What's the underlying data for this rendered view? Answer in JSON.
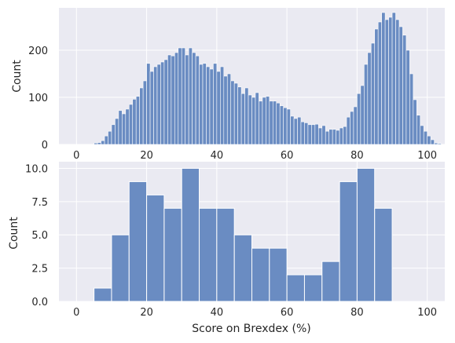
{
  "colors": {
    "plot_background": "#eaeaf2",
    "grid": "#ffffff",
    "bar_fill": "#6a8cc2",
    "bar_edge": "#ffffff"
  },
  "chart_data": [
    {
      "type": "bar",
      "subtype": "histogram",
      "title": "",
      "xlabel": "",
      "ylabel": "Count",
      "xlim": [
        -5,
        105
      ],
      "ylim": [
        0,
        290
      ],
      "xticks": [
        0,
        20,
        40,
        60,
        80,
        100
      ],
      "yticks": [
        0,
        100,
        200
      ],
      "ytick_labels": [
        "0",
        "100",
        "200"
      ],
      "grid": true,
      "bin_start": 0,
      "bin_width": 1,
      "values": [
        0,
        0,
        0,
        0,
        0,
        3,
        4,
        8,
        18,
        28,
        42,
        55,
        72,
        65,
        75,
        85,
        96,
        102,
        120,
        135,
        172,
        155,
        165,
        170,
        175,
        180,
        190,
        188,
        195,
        205,
        205,
        190,
        205,
        195,
        188,
        170,
        172,
        165,
        160,
        172,
        155,
        165,
        145,
        150,
        135,
        130,
        122,
        108,
        120,
        105,
        100,
        110,
        92,
        100,
        102,
        92,
        92,
        88,
        82,
        78,
        75,
        60,
        55,
        58,
        48,
        46,
        42,
        42,
        43,
        35,
        40,
        28,
        32,
        32,
        30,
        35,
        38,
        58,
        70,
        80,
        108,
        125,
        170,
        195,
        215,
        245,
        260,
        280,
        265,
        270,
        280,
        265,
        250,
        232,
        200,
        150,
        95,
        62,
        40,
        28,
        18,
        10,
        3,
        2,
        0
      ]
    },
    {
      "type": "bar",
      "subtype": "histogram",
      "title": "",
      "xlabel": "Score on Brexdex (%)",
      "ylabel": "Count",
      "xlim": [
        -5,
        105
      ],
      "ylim": [
        0,
        10.5
      ],
      "xticks": [
        0,
        20,
        40,
        60,
        80,
        100
      ],
      "yticks": [
        0,
        2.5,
        5,
        7.5,
        10
      ],
      "ytick_labels": [
        "0.0",
        "2.5",
        "5.0",
        "7.5",
        "10.0"
      ],
      "grid": true,
      "bin_start": 5,
      "bin_width": 5,
      "values": [
        1,
        5,
        9,
        8,
        7,
        10,
        7,
        7,
        5,
        4,
        4,
        2,
        2,
        3,
        9,
        10,
        7
      ]
    }
  ]
}
